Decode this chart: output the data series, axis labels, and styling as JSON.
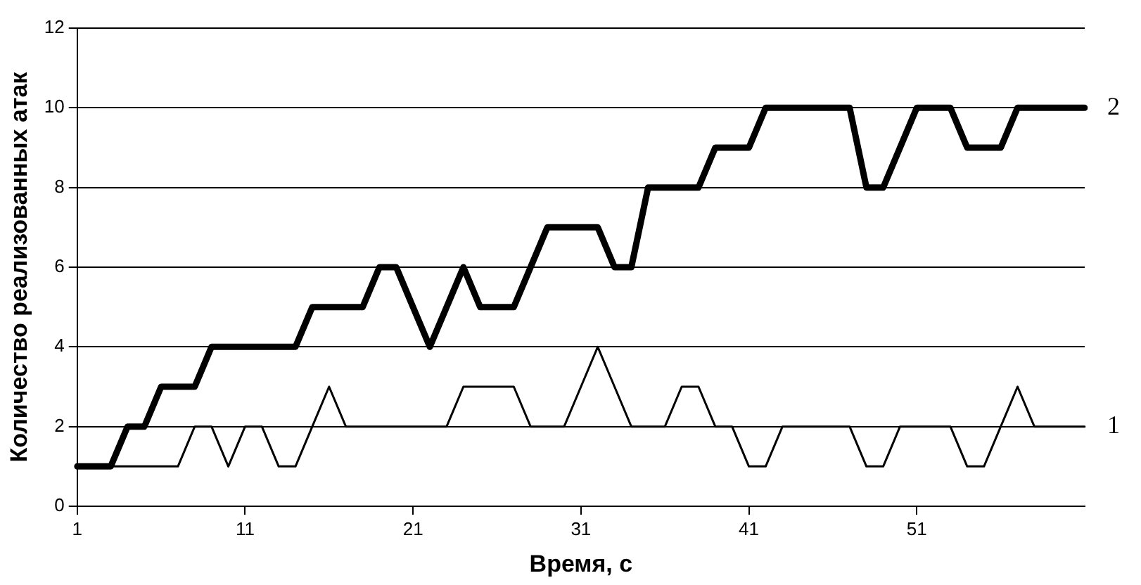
{
  "chart_data": {
    "type": "line",
    "xlabel": "Время, с",
    "ylabel": "Количество реализованных атак",
    "categories": [
      "1",
      null,
      null,
      null,
      null,
      null,
      null,
      null,
      null,
      null,
      "11",
      null,
      null,
      null,
      null,
      null,
      null,
      null,
      null,
      null,
      "21",
      null,
      null,
      null,
      null,
      null,
      null,
      null,
      null,
      null,
      "31",
      null,
      null,
      null,
      null,
      null,
      null,
      null,
      null,
      null,
      "41",
      null,
      null,
      null,
      null,
      null,
      null,
      null,
      null,
      null,
      "51",
      null,
      null,
      null,
      null,
      null,
      null,
      null,
      null,
      null,
      null
    ],
    "series": [
      {
        "name": "1",
        "color": "#000000",
        "values": [
          1,
          1,
          1,
          1,
          1,
          1,
          1,
          2,
          2,
          1,
          2,
          2,
          1,
          1,
          2,
          3,
          2,
          2,
          2,
          2,
          2,
          2,
          2,
          3,
          3,
          3,
          3,
          2,
          2,
          2,
          3,
          4,
          3,
          2,
          2,
          2,
          3,
          3,
          2,
          2,
          1,
          1,
          2,
          2,
          2,
          2,
          2,
          1,
          1,
          2,
          2,
          2,
          2,
          1,
          1,
          2,
          3,
          2,
          2,
          2,
          2
        ]
      },
      {
        "name": "2",
        "color": "#000000",
        "values": [
          1,
          1,
          1,
          2,
          2,
          3,
          3,
          3,
          4,
          4,
          4,
          4,
          4,
          4,
          5,
          5,
          5,
          5,
          6,
          6,
          5,
          4,
          5,
          6,
          5,
          5,
          5,
          6,
          7,
          7,
          7,
          7,
          6,
          6,
          8,
          8,
          8,
          8,
          9,
          9,
          9,
          10,
          10,
          10,
          10,
          10,
          10,
          8,
          8,
          9,
          10,
          10,
          10,
          9,
          9,
          9,
          10,
          10,
          10,
          10,
          10
        ]
      }
    ],
    "ylim": [
      0,
      12
    ],
    "yticks": [
      0,
      2,
      4,
      6,
      8,
      10,
      12
    ],
    "grid": "y",
    "legend": false,
    "marker": "none",
    "line_style": "solid"
  }
}
